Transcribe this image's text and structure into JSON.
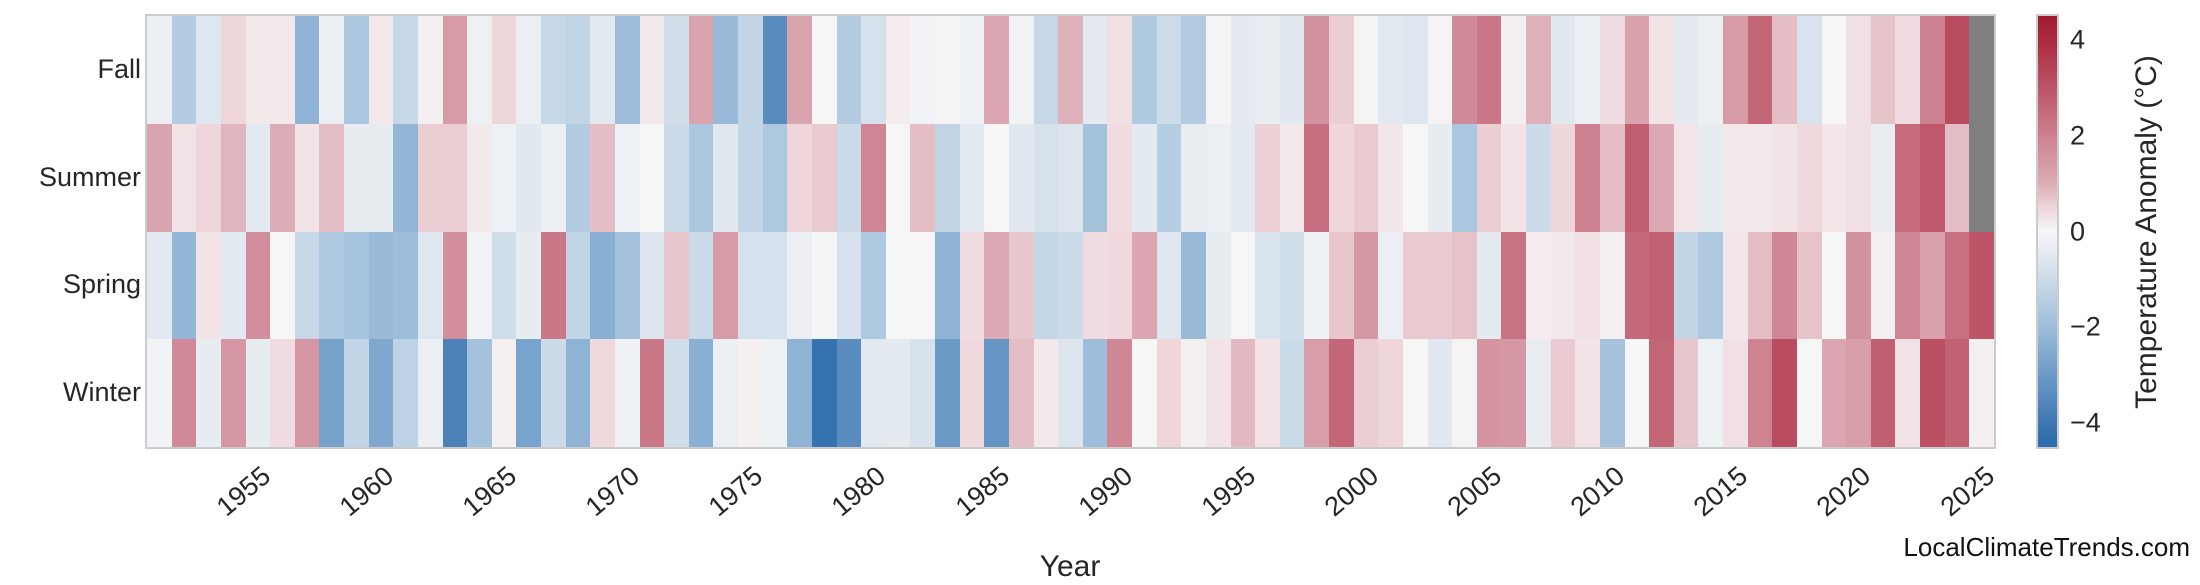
{
  "watermark": "LocalClimateTrends.com",
  "x_axis": {
    "label": "Year",
    "tick_years": [
      1955,
      1960,
      1965,
      1970,
      1975,
      1980,
      1985,
      1990,
      1995,
      2000,
      2005,
      2010,
      2015,
      2020,
      2025
    ]
  },
  "y_axis": {
    "row_labels": [
      "Fall",
      "Summer",
      "Spring",
      "Winter"
    ]
  },
  "colorbar": {
    "label": "Temperature Anomaly (°C)",
    "tick_values": [
      4,
      2,
      0,
      -2,
      -4
    ],
    "vmin": -4.5,
    "vmax": 4.5
  },
  "colors": {
    "background": "#ffffff",
    "frame": "#cccccc",
    "text": "#262626",
    "missing": "#7f7f7f"
  },
  "chart_data": {
    "type": "heatmap",
    "title": "",
    "xlabel": "Year",
    "x": [
      1951,
      1952,
      1953,
      1954,
      1955,
      1956,
      1957,
      1958,
      1959,
      1960,
      1961,
      1962,
      1963,
      1964,
      1965,
      1966,
      1967,
      1968,
      1969,
      1970,
      1971,
      1972,
      1973,
      1974,
      1975,
      1976,
      1977,
      1978,
      1979,
      1980,
      1981,
      1982,
      1983,
      1984,
      1985,
      1986,
      1987,
      1988,
      1989,
      1990,
      1991,
      1992,
      1993,
      1994,
      1995,
      1996,
      1997,
      1998,
      1999,
      2000,
      2001,
      2002,
      2003,
      2004,
      2005,
      2006,
      2007,
      2008,
      2009,
      2010,
      2011,
      2012,
      2013,
      2014,
      2015,
      2016,
      2017,
      2018,
      2019,
      2020,
      2021,
      2022,
      2023,
      2024,
      2025
    ],
    "rows": [
      "Fall",
      "Summer",
      "Spring",
      "Winter"
    ],
    "unit": "°C temperature anomaly",
    "missing_cells": [
      [
        "Fall",
        2025
      ],
      [
        "Summer",
        2025
      ]
    ],
    "legend_position": "right colorbar",
    "grid": false,
    "colormap_anchors": [
      [
        -4.5,
        "#2c6bae"
      ],
      [
        -4.0,
        "#3e77b2"
      ],
      [
        -3.0,
        "#6c9ac7"
      ],
      [
        -2.0,
        "#9dbdda"
      ],
      [
        -1.0,
        "#cbdbe9"
      ],
      [
        -0.5,
        "#e3e9f0"
      ],
      [
        0.0,
        "#f6f6f7"
      ],
      [
        0.5,
        "#eed6da"
      ],
      [
        1.0,
        "#ddadb7"
      ],
      [
        2.0,
        "#cd8090"
      ],
      [
        3.0,
        "#bd5468"
      ],
      [
        4.0,
        "#aa2a3e"
      ],
      [
        4.5,
        "#a01b30"
      ]
    ],
    "series": [
      {
        "name": "Fall",
        "values": [
          -0.3,
          -1.5,
          -0.6,
          0.5,
          0.2,
          0.2,
          -2.3,
          -0.3,
          -1.7,
          0.2,
          -1.1,
          0.1,
          1.4,
          -0.2,
          0.5,
          -0.3,
          -1.1,
          -1.2,
          -0.5,
          -2.0,
          0.2,
          -0.9,
          1.2,
          -2.1,
          -1.2,
          -3.4,
          1.2,
          0.0,
          -1.5,
          -0.8,
          0.15,
          -0.1,
          0.05,
          -0.25,
          1.15,
          -0.15,
          -1.1,
          0.95,
          -0.45,
          0.35,
          -1.6,
          -0.95,
          -1.55,
          0.05,
          -0.45,
          -0.35,
          -0.55,
          1.6,
          0.6,
          0.05,
          -0.5,
          -0.6,
          0.05,
          1.8,
          2.2,
          0.1,
          0.95,
          -0.55,
          -0.3,
          0.4,
          1.25,
          0.3,
          -0.45,
          -0.3,
          1.4,
          2.6,
          0.8,
          -0.7,
          0.0,
          0.35,
          0.75,
          0.4,
          2.0,
          3.2,
          null
        ]
      },
      {
        "name": "Summer",
        "values": [
          1.2,
          0.3,
          0.5,
          0.9,
          -0.5,
          1.0,
          0.3,
          0.8,
          -0.4,
          -0.4,
          -2.2,
          0.6,
          0.6,
          0.2,
          -0.25,
          -0.55,
          -0.3,
          -1.55,
          0.8,
          -0.25,
          0.0,
          -1.0,
          -1.7,
          -0.55,
          -1.2,
          -1.65,
          0.5,
          0.65,
          -1.0,
          1.85,
          0.0,
          0.8,
          -1.25,
          -0.5,
          0.0,
          -0.55,
          -0.75,
          -0.65,
          -1.85,
          0.4,
          -0.5,
          -1.45,
          -0.35,
          -0.3,
          -0.5,
          0.55,
          0.2,
          2.4,
          0.5,
          0.65,
          0.25,
          0.0,
          -0.4,
          -1.7,
          0.6,
          0.3,
          -1.0,
          0.5,
          2.0,
          0.8,
          2.8,
          1.1,
          0.25,
          -0.4,
          0.2,
          0.2,
          0.3,
          0.45,
          0.25,
          0.35,
          -0.35,
          2.45,
          2.9,
          0.8,
          null
        ]
      },
      {
        "name": "Spring",
        "values": [
          -0.5,
          -2.2,
          0.3,
          -0.5,
          1.7,
          0.0,
          -1.1,
          -1.6,
          -1.8,
          -2.1,
          -2.0,
          -0.6,
          1.7,
          -0.15,
          -0.9,
          -0.4,
          2.2,
          -1.2,
          -2.4,
          -1.85,
          -0.65,
          0.7,
          -1.0,
          1.4,
          -0.8,
          -0.8,
          -0.3,
          -0.05,
          -0.8,
          -1.65,
          0.0,
          0.0,
          -2.3,
          0.4,
          1.1,
          0.7,
          -1.15,
          -1.0,
          0.4,
          0.45,
          1.15,
          -0.6,
          -2.1,
          -0.4,
          0.0,
          -0.7,
          -0.9,
          -0.25,
          0.7,
          1.5,
          -0.3,
          0.65,
          0.65,
          0.75,
          -0.45,
          2.3,
          0.15,
          0.2,
          0.35,
          0.1,
          2.5,
          2.7,
          -1.2,
          -1.6,
          0.25,
          0.8,
          1.85,
          0.75,
          0.0,
          1.6,
          0.1,
          1.9,
          1.3,
          2.35,
          3.0
        ]
      },
      {
        "name": "Winter",
        "values": [
          -0.1,
          1.8,
          -0.4,
          1.5,
          -0.4,
          0.4,
          1.5,
          -2.8,
          -1.2,
          -2.6,
          -1.3,
          -0.3,
          -3.7,
          -1.85,
          0.1,
          -2.75,
          -1.0,
          -2.3,
          0.45,
          -0.2,
          2.2,
          -0.85,
          -2.4,
          -0.3,
          0.1,
          -0.25,
          -2.3,
          -4.2,
          -3.4,
          -0.5,
          -0.45,
          -0.75,
          -3.0,
          0.45,
          -3.15,
          0.8,
          0.2,
          -0.65,
          -2.0,
          1.85,
          0.0,
          0.5,
          0.1,
          0.3,
          0.85,
          0.3,
          -1.05,
          1.35,
          2.6,
          0.6,
          0.5,
          0.0,
          -0.55,
          0.05,
          1.55,
          1.5,
          -0.35,
          0.65,
          0.3,
          -1.85,
          0.0,
          2.6,
          0.7,
          -0.2,
          0.35,
          1.95,
          3.2,
          0.0,
          1.15,
          1.35,
          2.75,
          0.3,
          3.1,
          2.7,
          0.1
        ]
      }
    ]
  }
}
